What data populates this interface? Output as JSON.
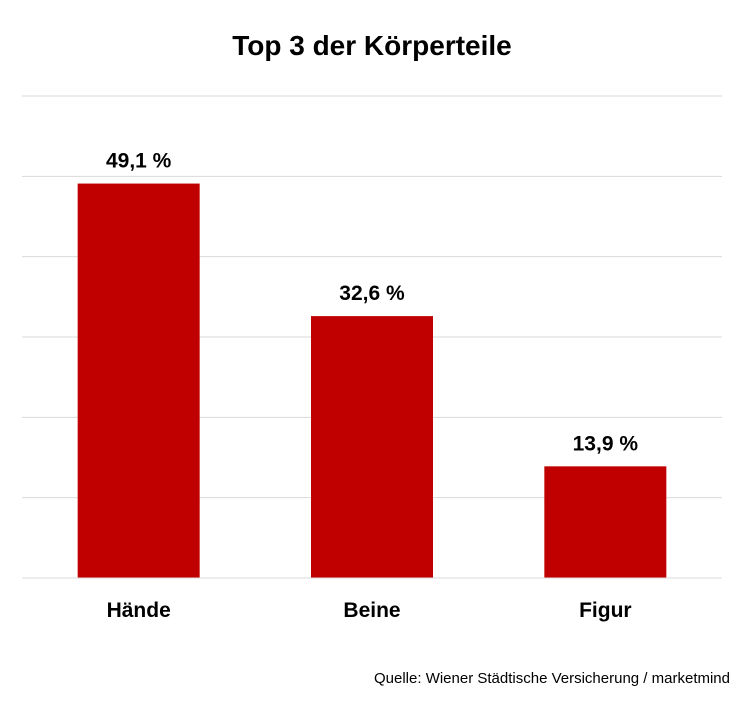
{
  "chart_data": {
    "type": "bar",
    "title": "Top 3 der Körperteile",
    "categories": [
      "Hände",
      "Beine",
      "Figur"
    ],
    "values": [
      49.1,
      32.6,
      13.9
    ],
    "value_labels": [
      "49,1 %",
      "32,6 %",
      "13,9 %"
    ],
    "xlabel": "",
    "ylabel": "",
    "ylim": [
      0,
      60
    ],
    "grid": true,
    "legend": "none",
    "bar_color": "#C00000",
    "grid_color": "#D9D9D9"
  },
  "source": "Quelle: Wiener Städtische Versicherung / marketmind"
}
